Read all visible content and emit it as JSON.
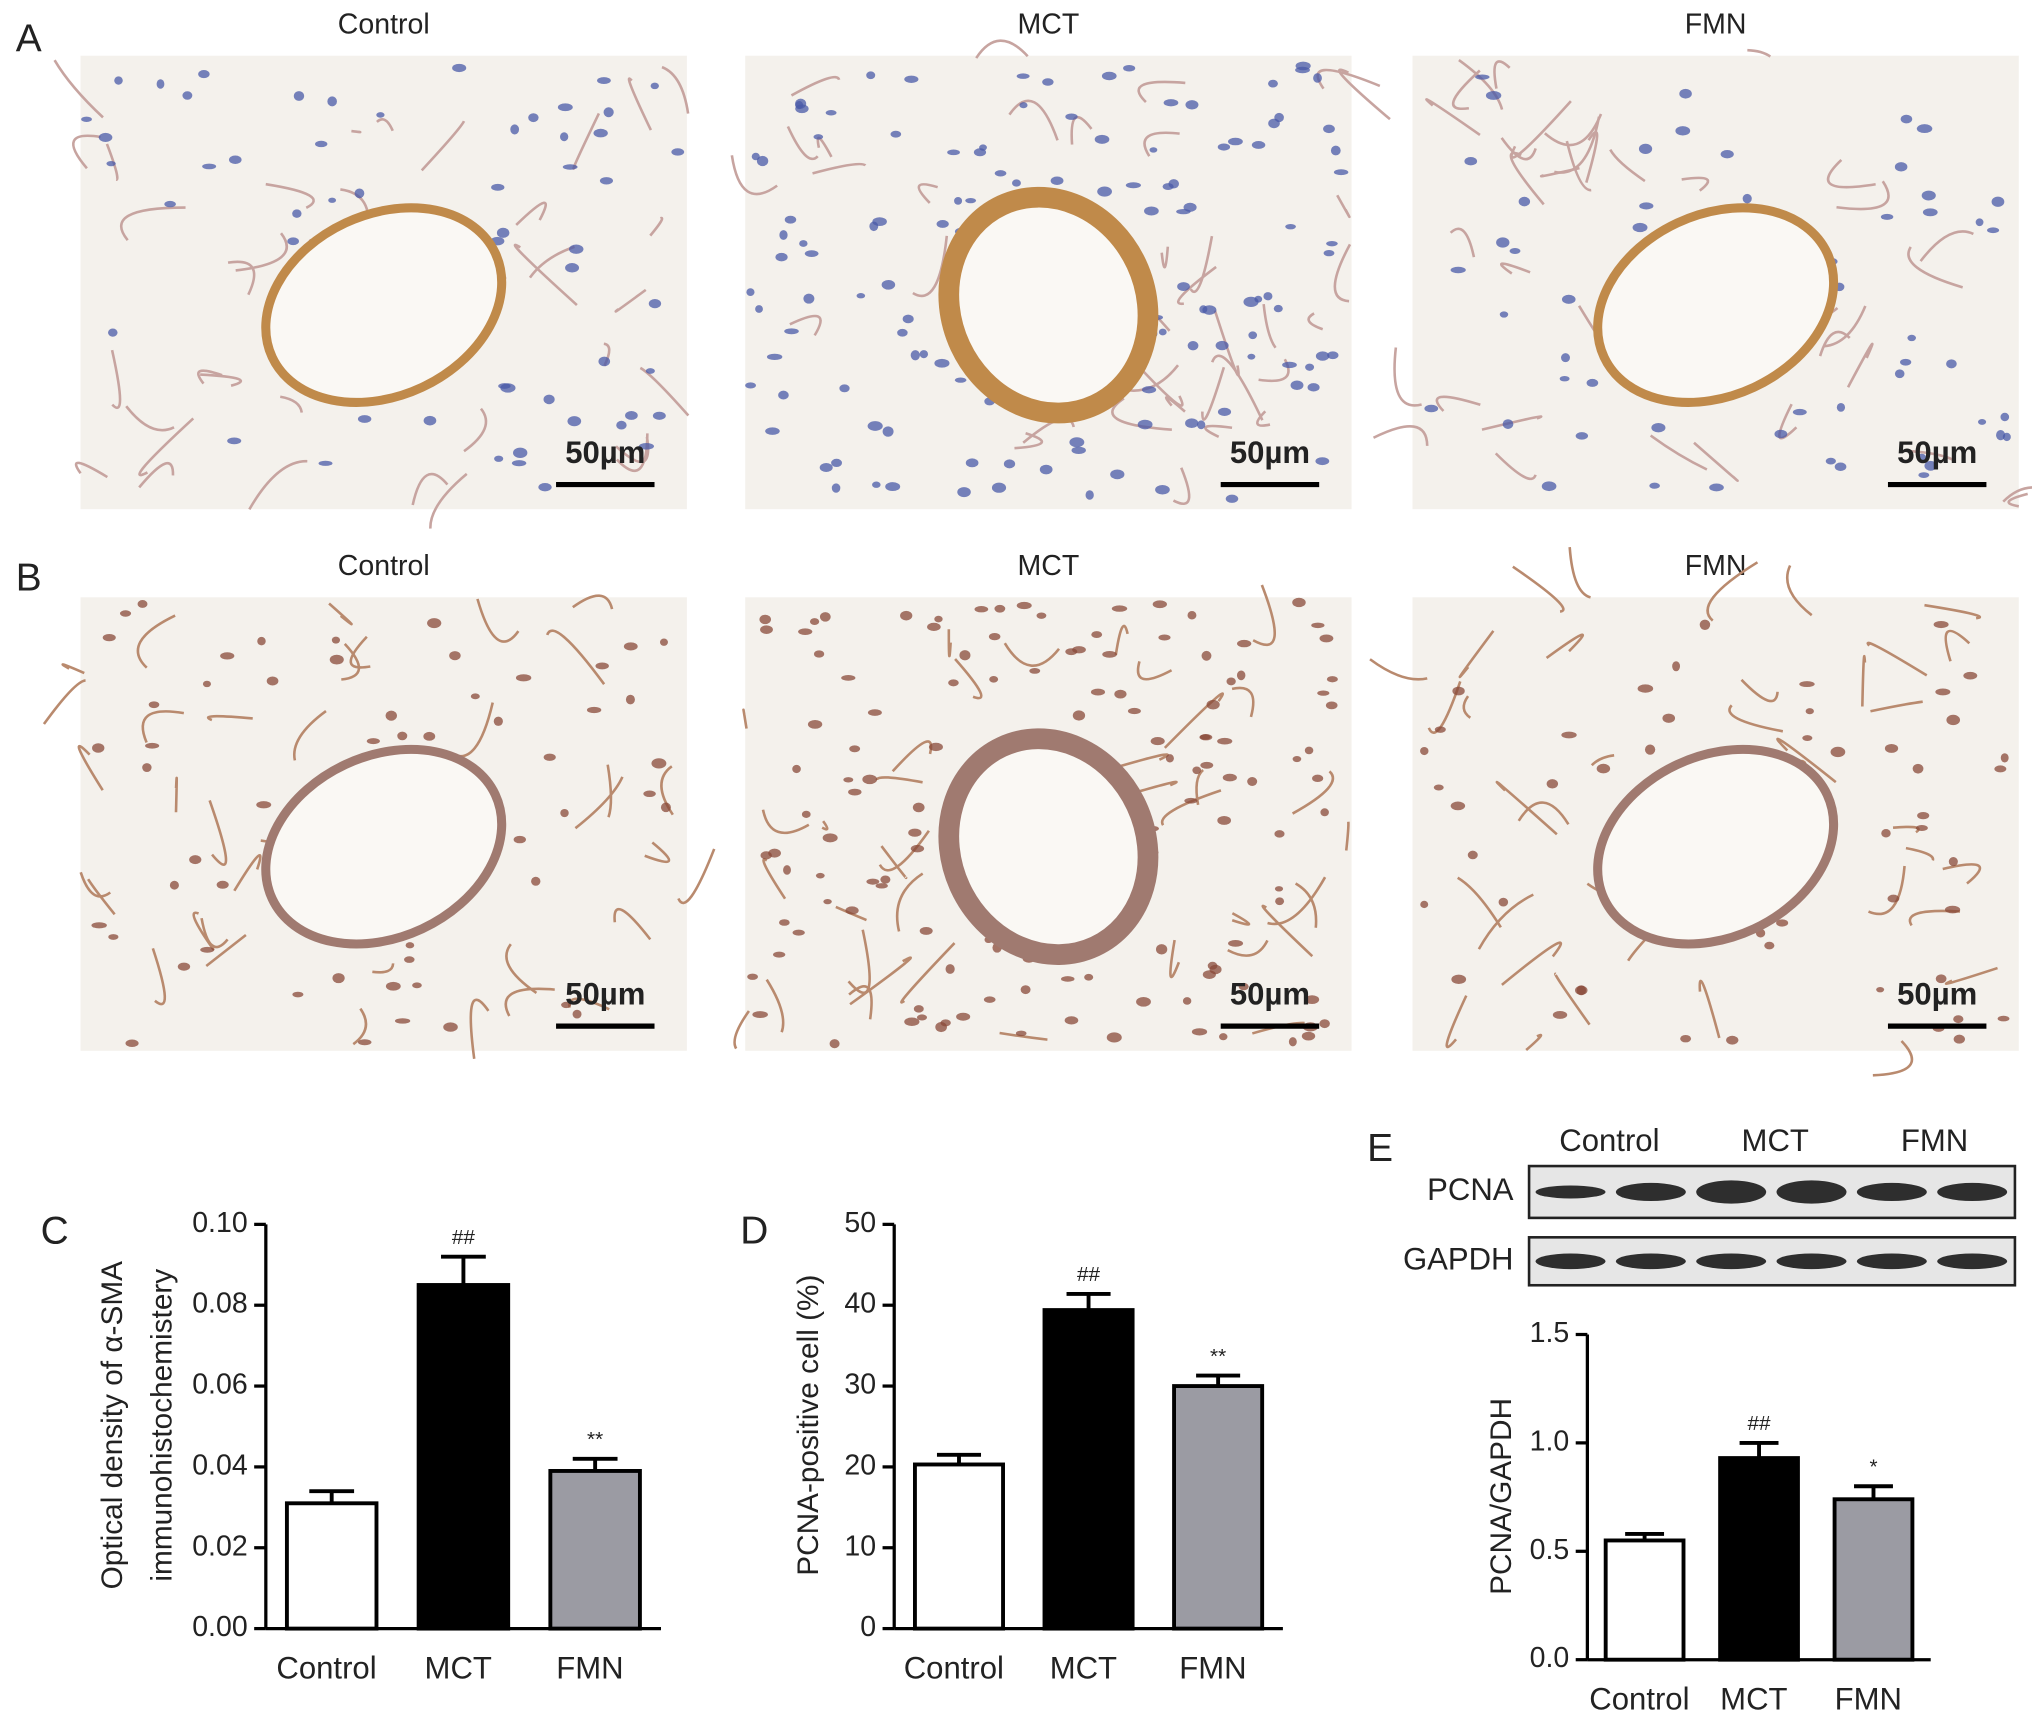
{
  "figure": {
    "panel_labels": [
      "A",
      "B",
      "C",
      "D",
      "E"
    ],
    "micrograph_rows": [
      {
        "titles": [
          "Control",
          "MCT",
          "FMN"
        ],
        "scale_bars": [
          "50µm",
          "50µm",
          "50µm"
        ]
      },
      {
        "titles": [
          "Control",
          "MCT",
          "FMN"
        ],
        "scale_bars": [
          "50µm",
          "50µm",
          "50µm"
        ]
      }
    ],
    "blot": {
      "groups": [
        "Control",
        "MCT",
        "FMN"
      ],
      "rows": [
        "PCNA",
        "GAPDH"
      ]
    }
  },
  "chart_data": [
    {
      "type": "bar",
      "ylabel": [
        "Optical density of α-SMA",
        "immunohistochemistery"
      ],
      "categories": [
        "Control",
        "MCT",
        "FMN"
      ],
      "values": [
        0.031,
        0.085,
        0.039
      ],
      "errors": [
        0.003,
        0.007,
        0.003
      ],
      "annotations": [
        null,
        "##",
        "**"
      ],
      "colors": [
        "#ffffff",
        "#000000",
        "#9b9ba3"
      ],
      "ylim": [
        0,
        0.1
      ],
      "yticks": [
        {
          "value": 0,
          "label": "0.00"
        },
        {
          "value": 0.02,
          "label": "0.02"
        },
        {
          "value": 0.04,
          "label": "0.04"
        },
        {
          "value": 0.06,
          "label": "0.06"
        },
        {
          "value": 0.08,
          "label": "0.08"
        },
        {
          "value": 0.1,
          "label": "0.10"
        }
      ]
    },
    {
      "type": "bar",
      "ylabel": [
        "PCNA-positive cell (%)"
      ],
      "categories": [
        "Control",
        "MCT",
        "FMN"
      ],
      "values": [
        20.3,
        39.4,
        30.0
      ],
      "errors": [
        1.2,
        2.0,
        1.3
      ],
      "annotations": [
        null,
        "##",
        "**"
      ],
      "colors": [
        "#ffffff",
        "#000000",
        "#9b9ba3"
      ],
      "ylim": [
        0,
        50
      ],
      "yticks": [
        0,
        10,
        20,
        30,
        40,
        50
      ]
    },
    {
      "type": "bar",
      "ylabel": [
        "PCNA/GAPDH"
      ],
      "categories": [
        "Control",
        "MCT",
        "FMN"
      ],
      "values": [
        0.55,
        0.93,
        0.74
      ],
      "errors": [
        0.03,
        0.07,
        0.06
      ],
      "annotations": [
        null,
        "##",
        "*"
      ],
      "colors": [
        "#ffffff",
        "#000000",
        "#9b9ba3"
      ],
      "ylim": [
        0,
        1.5
      ],
      "yticks": [
        {
          "value": 0,
          "label": "0.0"
        },
        {
          "value": 0.5,
          "label": "0.5"
        },
        {
          "value": 1,
          "label": "1.0"
        },
        {
          "value": 1.5,
          "label": "1.5"
        }
      ]
    }
  ]
}
